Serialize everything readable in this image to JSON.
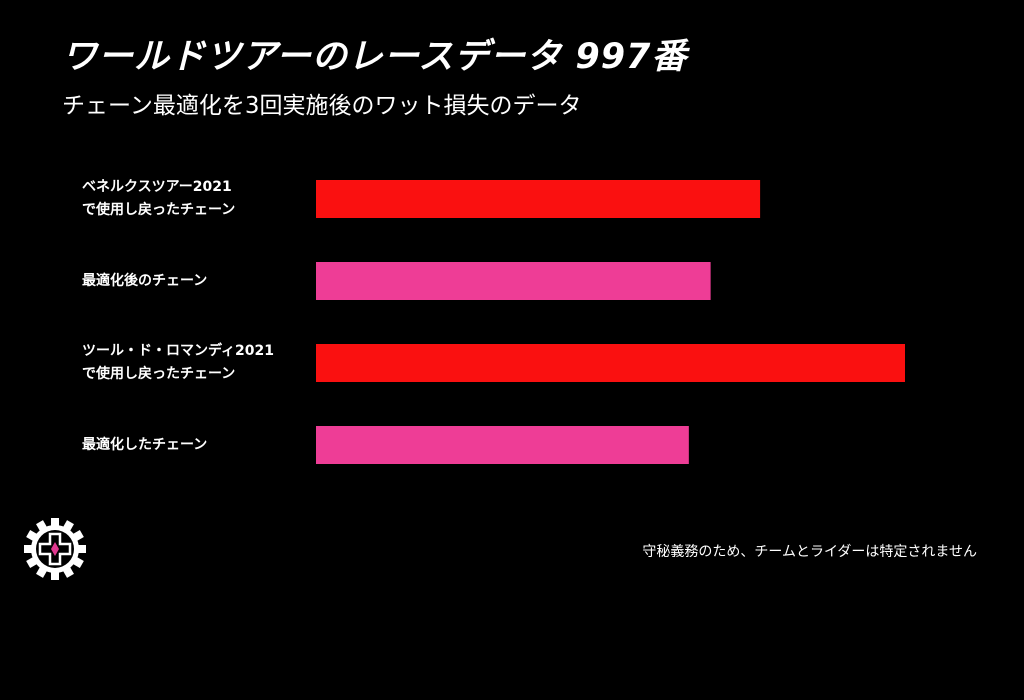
{
  "title": "ワールドツアーのレースデータ 997番",
  "subtitle": "チェーン最適化を3回実施後のワット損失のデータ",
  "footnote": "守秘義務のため、チームとライダーは特定されません",
  "logo": {
    "icon": "gear-cross-icon",
    "colors": {
      "gear": "#ffffff",
      "cross": "#000000",
      "accent": "#e0388f"
    }
  },
  "chart_data": {
    "type": "bar",
    "orientation": "horizontal",
    "categories": [
      "ベネルクスツアー2021\nで使用し戻ったチェーン",
      "最適化後のチェーン",
      "ツール・ド・ロマンディ2021\nで使用し戻ったチェーン",
      "最適化したチェーン"
    ],
    "values": [
      7.54,
      6.7,
      10.0,
      6.33
    ],
    "colors": [
      "#fa1010",
      "#ee3d96",
      "#fa1010",
      "#ee3d96"
    ],
    "xlabel": "",
    "ylabel": "",
    "xlim": [
      0,
      10
    ],
    "grid": false,
    "legend": "none"
  }
}
